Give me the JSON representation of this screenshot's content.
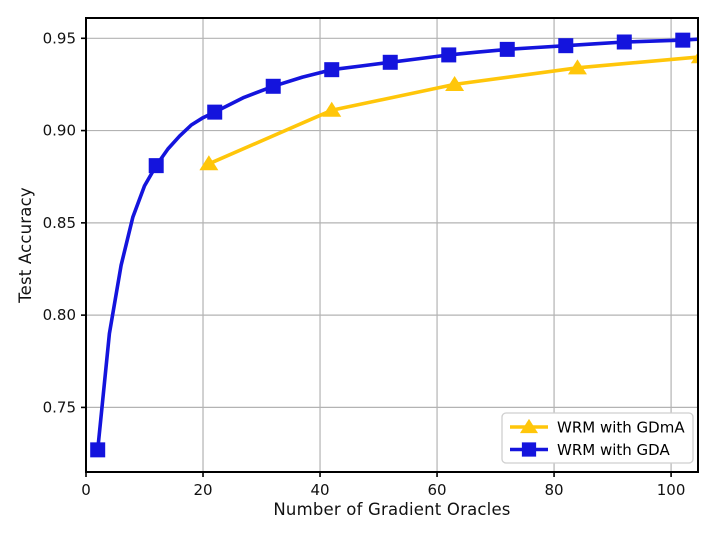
{
  "figure": {
    "background": "#ffffff"
  },
  "chart_data": {
    "type": "line",
    "title": "",
    "xlabel": "Number of Gradient Oracles",
    "ylabel": "Test Accuracy",
    "xlim": [
      0,
      104.6
    ],
    "ylim": [
      0.715,
      0.961
    ],
    "xticks": [
      0,
      20,
      40,
      60,
      80,
      100
    ],
    "xtick_labels": [
      "0",
      "20",
      "40",
      "60",
      "80",
      "100"
    ],
    "yticks": [
      0.75,
      0.8,
      0.85,
      0.9,
      0.95
    ],
    "ytick_labels": [
      "0.75",
      "0.80",
      "0.85",
      "0.90",
      "0.95"
    ],
    "grid": true,
    "grid_color": "#b3b3b3",
    "spine_color": "#000000",
    "tick_label_color": "#111111",
    "legend": {
      "position": "lower right",
      "border_color": "#cfcfcf",
      "background": "#ffffff"
    },
    "series": [
      {
        "name": "WRM with GDmA",
        "color": "#ffc60a",
        "marker": "triangle",
        "x": [
          21,
          42,
          63,
          84,
          105
        ],
        "y": [
          0.882,
          0.911,
          0.925,
          0.934,
          0.94
        ]
      },
      {
        "name": "WRM with GDA",
        "color": "#1414dd",
        "marker": "square",
        "x": [
          2,
          12,
          22,
          32,
          42,
          52,
          62,
          72,
          82,
          92,
          102
        ],
        "y": [
          0.727,
          0.881,
          0.91,
          0.924,
          0.933,
          0.937,
          0.941,
          0.944,
          0.946,
          0.948,
          0.949
        ],
        "line_x": [
          2,
          4,
          6,
          8,
          10,
          12,
          14,
          16,
          18,
          20,
          22,
          27,
          32,
          37,
          42,
          47,
          52,
          57,
          62,
          67,
          72,
          77,
          82,
          87,
          92,
          97,
          102,
          104.6
        ],
        "line_y": [
          0.727,
          0.79,
          0.827,
          0.853,
          0.87,
          0.881,
          0.89,
          0.897,
          0.903,
          0.907,
          0.91,
          0.918,
          0.924,
          0.929,
          0.933,
          0.935,
          0.937,
          0.939,
          0.941,
          0.9425,
          0.944,
          0.945,
          0.946,
          0.947,
          0.948,
          0.9485,
          0.949,
          0.9495
        ]
      }
    ]
  }
}
